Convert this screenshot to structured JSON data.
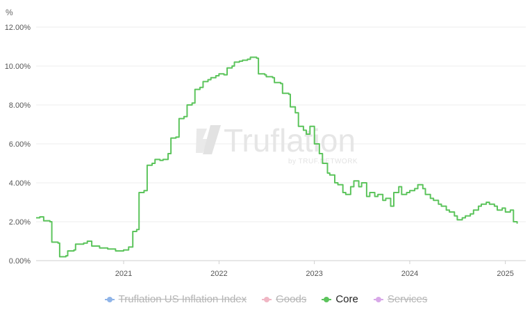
{
  "chart_data": {
    "type": "line",
    "y_unit_label": "%",
    "ylim": [
      0,
      12
    ],
    "y_ticks": [
      "0.00%",
      "2.00%",
      "4.00%",
      "6.00%",
      "8.00%",
      "10.00%",
      "12.00%"
    ],
    "x_ticks": [
      "2021",
      "2022",
      "2023",
      "2024",
      "2025"
    ],
    "grid": "horizontal",
    "legend_placement": "bottom",
    "watermark": {
      "brand": "Truflation",
      "tagline": "by TRUF.NETWORK"
    },
    "series": [
      {
        "name": "Truflation US Inflation Index",
        "color": "#8fb4e8",
        "visible": false,
        "values": []
      },
      {
        "name": "Goods",
        "color": "#f0b6c4",
        "visible": false,
        "values": []
      },
      {
        "name": "Core",
        "color": "#5cc45c",
        "visible": true,
        "points": [
          [
            "2020-02-01",
            2.2
          ],
          [
            "2020-02-15",
            2.25
          ],
          [
            "2020-03-01",
            2.05
          ],
          [
            "2020-03-25",
            2.0
          ],
          [
            "2020-04-01",
            0.95
          ],
          [
            "2020-04-25",
            0.9
          ],
          [
            "2020-05-01",
            0.2
          ],
          [
            "2020-05-25",
            0.25
          ],
          [
            "2020-06-01",
            0.5
          ],
          [
            "2020-06-25",
            0.55
          ],
          [
            "2020-07-01",
            0.85
          ],
          [
            "2020-08-01",
            0.9
          ],
          [
            "2020-08-15",
            1.0
          ],
          [
            "2020-09-01",
            0.75
          ],
          [
            "2020-10-01",
            0.65
          ],
          [
            "2020-11-01",
            0.6
          ],
          [
            "2020-12-01",
            0.5
          ],
          [
            "2021-01-01",
            0.55
          ],
          [
            "2021-01-20",
            0.7
          ],
          [
            "2021-02-05",
            1.5
          ],
          [
            "2021-02-20",
            1.6
          ],
          [
            "2021-03-01",
            3.5
          ],
          [
            "2021-03-20",
            3.6
          ],
          [
            "2021-04-01",
            4.9
          ],
          [
            "2021-04-20",
            5.0
          ],
          [
            "2021-05-01",
            5.2
          ],
          [
            "2021-05-20",
            5.15
          ],
          [
            "2021-06-01",
            5.2
          ],
          [
            "2021-06-20",
            5.5
          ],
          [
            "2021-07-01",
            6.3
          ],
          [
            "2021-07-20",
            6.35
          ],
          [
            "2021-08-01",
            7.3
          ],
          [
            "2021-08-20",
            7.4
          ],
          [
            "2021-09-01",
            8.0
          ],
          [
            "2021-09-20",
            8.1
          ],
          [
            "2021-10-01",
            8.8
          ],
          [
            "2021-10-20",
            8.9
          ],
          [
            "2021-11-01",
            9.2
          ],
          [
            "2021-11-20",
            9.3
          ],
          [
            "2021-12-01",
            9.4
          ],
          [
            "2021-12-20",
            9.5
          ],
          [
            "2022-01-01",
            9.6
          ],
          [
            "2022-01-20",
            9.55
          ],
          [
            "2022-02-01",
            9.9
          ],
          [
            "2022-02-20",
            10.0
          ],
          [
            "2022-03-01",
            10.2
          ],
          [
            "2022-03-20",
            10.25
          ],
          [
            "2022-04-01",
            10.3
          ],
          [
            "2022-04-20",
            10.35
          ],
          [
            "2022-05-01",
            10.45
          ],
          [
            "2022-05-25",
            10.4
          ],
          [
            "2022-06-01",
            9.6
          ],
          [
            "2022-06-25",
            9.55
          ],
          [
            "2022-07-01",
            9.45
          ],
          [
            "2022-07-25",
            9.4
          ],
          [
            "2022-08-01",
            9.15
          ],
          [
            "2022-08-25",
            9.1
          ],
          [
            "2022-09-01",
            8.6
          ],
          [
            "2022-09-25",
            8.55
          ],
          [
            "2022-10-01",
            7.9
          ],
          [
            "2022-10-20",
            7.6
          ],
          [
            "2022-11-01",
            6.9
          ],
          [
            "2022-11-20",
            6.7
          ],
          [
            "2022-12-01",
            6.5
          ],
          [
            "2022-12-15",
            6.9
          ],
          [
            "2023-01-01",
            6.0
          ],
          [
            "2023-01-20",
            5.5
          ],
          [
            "2023-02-01",
            5.0
          ],
          [
            "2023-02-20",
            4.5
          ],
          [
            "2023-03-01",
            4.4
          ],
          [
            "2023-03-20",
            4.0
          ],
          [
            "2023-04-01",
            3.9
          ],
          [
            "2023-04-20",
            3.5
          ],
          [
            "2023-05-01",
            3.4
          ],
          [
            "2023-05-20",
            3.8
          ],
          [
            "2023-06-01",
            4.1
          ],
          [
            "2023-06-20",
            3.8
          ],
          [
            "2023-07-01",
            4.0
          ],
          [
            "2023-07-20",
            3.3
          ],
          [
            "2023-08-01",
            3.5
          ],
          [
            "2023-08-20",
            3.3
          ],
          [
            "2023-09-01",
            3.4
          ],
          [
            "2023-09-20",
            3.1
          ],
          [
            "2023-10-01",
            3.2
          ],
          [
            "2023-10-20",
            2.8
          ],
          [
            "2023-11-01",
            3.5
          ],
          [
            "2023-11-20",
            3.8
          ],
          [
            "2023-12-01",
            3.4
          ],
          [
            "2023-12-20",
            3.5
          ],
          [
            "2024-01-01",
            3.6
          ],
          [
            "2024-01-20",
            3.7
          ],
          [
            "2024-02-01",
            3.9
          ],
          [
            "2024-02-20",
            3.7
          ],
          [
            "2024-03-01",
            3.4
          ],
          [
            "2024-03-20",
            3.2
          ],
          [
            "2024-04-01",
            3.1
          ],
          [
            "2024-04-20",
            2.9
          ],
          [
            "2024-05-01",
            2.8
          ],
          [
            "2024-05-20",
            2.6
          ],
          [
            "2024-06-01",
            2.5
          ],
          [
            "2024-06-20",
            2.3
          ],
          [
            "2024-07-01",
            2.1
          ],
          [
            "2024-07-20",
            2.2
          ],
          [
            "2024-08-01",
            2.3
          ],
          [
            "2024-08-20",
            2.4
          ],
          [
            "2024-09-01",
            2.6
          ],
          [
            "2024-09-20",
            2.8
          ],
          [
            "2024-10-01",
            2.9
          ],
          [
            "2024-10-20",
            3.0
          ],
          [
            "2024-11-01",
            2.9
          ],
          [
            "2024-11-20",
            2.8
          ],
          [
            "2024-12-01",
            2.6
          ],
          [
            "2024-12-20",
            2.7
          ],
          [
            "2025-01-01",
            2.5
          ],
          [
            "2025-01-20",
            2.6
          ],
          [
            "2025-02-01",
            2.0
          ],
          [
            "2025-02-15",
            1.9
          ]
        ]
      },
      {
        "name": "Services",
        "color": "#d8a8e8",
        "visible": false,
        "values": []
      }
    ]
  }
}
